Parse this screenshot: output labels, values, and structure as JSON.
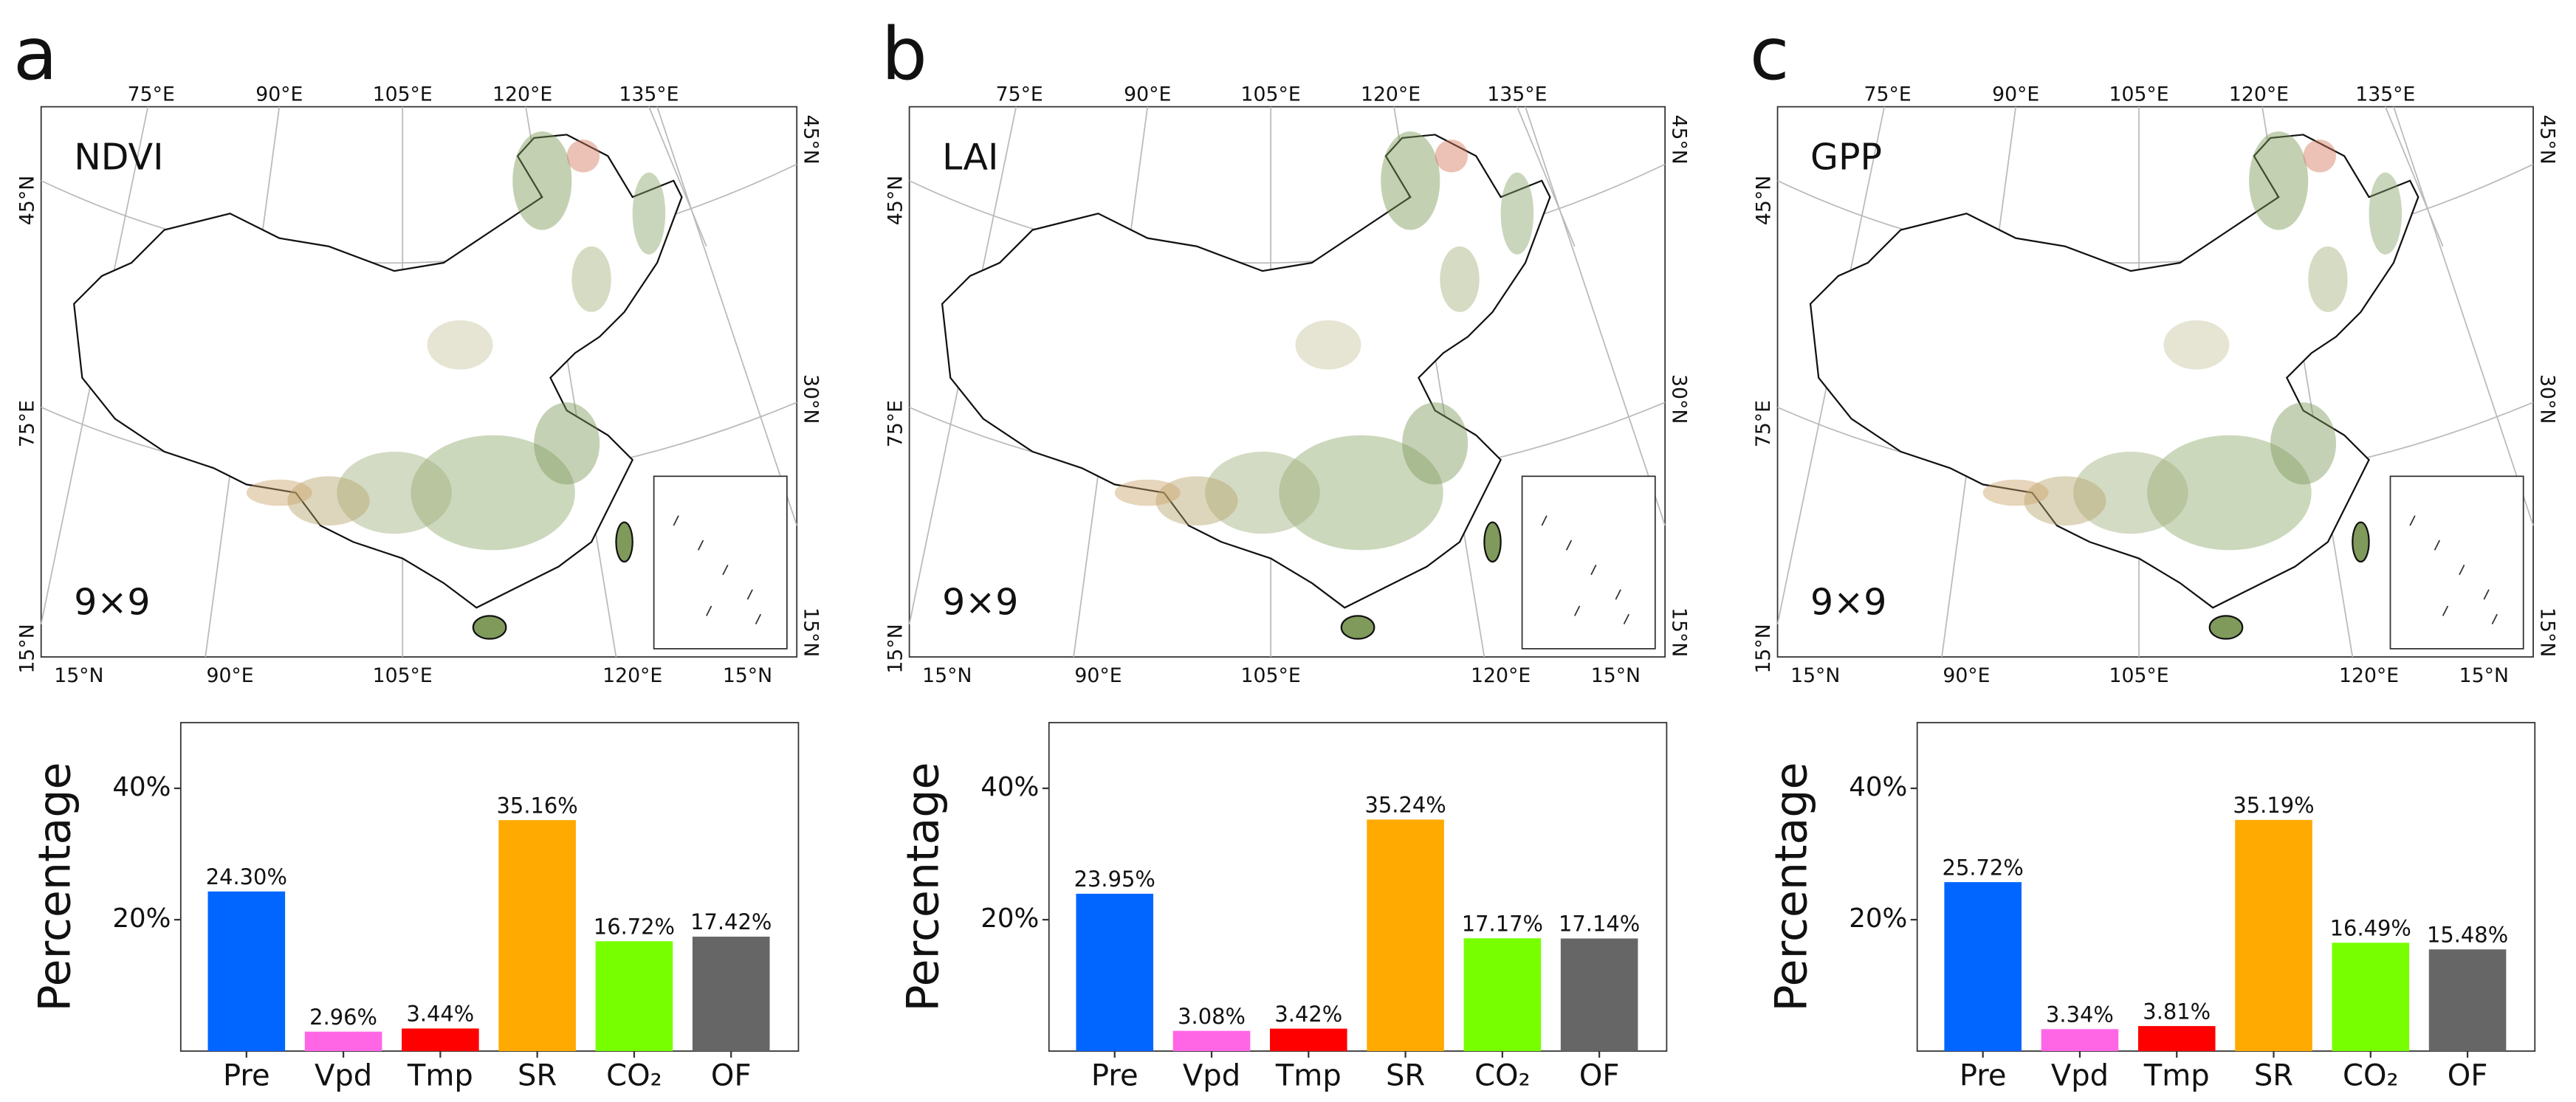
{
  "panels": [
    {
      "letter": "a",
      "map": {
        "variable": "NDVI",
        "resolution": "9×9",
        "top_labels": [
          "75°E",
          "90°E",
          "105°E",
          "120°E",
          "135°E"
        ],
        "left_labels": [
          "45°N",
          "75°E",
          "15°N"
        ],
        "right_labels": [
          "45°N",
          "30°N",
          "15°N"
        ],
        "bottom_labels": [
          "15°N",
          "90°E",
          "105°E",
          "120°E",
          "15°N"
        ]
      }
    },
    {
      "letter": "b",
      "map": {
        "variable": "LAI",
        "resolution": "9×9",
        "top_labels": [
          "75°E",
          "90°E",
          "105°E",
          "120°E",
          "135°E"
        ],
        "left_labels": [
          "45°N",
          "75°E",
          "15°N"
        ],
        "right_labels": [
          "45°N",
          "30°N",
          "15°N"
        ],
        "bottom_labels": [
          "15°N",
          "90°E",
          "105°E",
          "120°E",
          "15°N"
        ]
      }
    },
    {
      "letter": "c",
      "map": {
        "variable": "GPP",
        "resolution": "9×9",
        "top_labels": [
          "75°E",
          "90°E",
          "105°E",
          "120°E",
          "135°E"
        ],
        "left_labels": [
          "45°N",
          "75°E",
          "15°N"
        ],
        "right_labels": [
          "45°N",
          "30°N",
          "15°N"
        ],
        "bottom_labels": [
          "15°N",
          "90°E",
          "105°E",
          "120°E",
          "15°N"
        ]
      }
    }
  ],
  "chart_data": [
    {
      "type": "bar",
      "y_label": "Percentage",
      "categories": [
        "Pre",
        "Vpd",
        "Tmp",
        "SR",
        "CO₂",
        "OF"
      ],
      "colors": [
        "#0066ff",
        "#ff66e6",
        "#ff0000",
        "#ffaa00",
        "#77ff00",
        "#666666"
      ],
      "values": [
        24.3,
        2.96,
        3.44,
        35.16,
        16.72,
        17.42
      ],
      "value_labels": [
        "24.30%",
        "2.96%",
        "3.44%",
        "35.16%",
        "16.72%",
        "17.42%"
      ],
      "ylim": [
        0,
        50
      ],
      "yticks": [
        {
          "value": 20,
          "label": "20%"
        },
        {
          "value": 40,
          "label": "40%"
        }
      ]
    },
    {
      "type": "bar",
      "y_label": "Percentage",
      "categories": [
        "Pre",
        "Vpd",
        "Tmp",
        "SR",
        "CO₂",
        "OF"
      ],
      "colors": [
        "#0066ff",
        "#ff66e6",
        "#ff0000",
        "#ffaa00",
        "#77ff00",
        "#666666"
      ],
      "values": [
        23.95,
        3.08,
        3.42,
        35.24,
        17.17,
        17.14
      ],
      "value_labels": [
        "23.95%",
        "3.08%",
        "3.42%",
        "35.24%",
        "17.17%",
        "17.14%"
      ],
      "ylim": [
        0,
        50
      ],
      "yticks": [
        {
          "value": 20,
          "label": "20%"
        },
        {
          "value": 40,
          "label": "40%"
        }
      ]
    },
    {
      "type": "bar",
      "y_label": "Percentage",
      "categories": [
        "Pre",
        "Vpd",
        "Tmp",
        "SR",
        "CO₂",
        "OF"
      ],
      "colors": [
        "#0066ff",
        "#ff66e6",
        "#ff0000",
        "#ffaa00",
        "#77ff00",
        "#666666"
      ],
      "values": [
        25.72,
        3.34,
        3.81,
        35.19,
        16.49,
        15.48
      ],
      "value_labels": [
        "25.72%",
        "3.34%",
        "3.81%",
        "35.19%",
        "16.49%",
        "15.48%"
      ],
      "ylim": [
        0,
        50
      ],
      "yticks": [
        {
          "value": 20,
          "label": "20%"
        },
        {
          "value": 40,
          "label": "40%"
        }
      ]
    }
  ]
}
